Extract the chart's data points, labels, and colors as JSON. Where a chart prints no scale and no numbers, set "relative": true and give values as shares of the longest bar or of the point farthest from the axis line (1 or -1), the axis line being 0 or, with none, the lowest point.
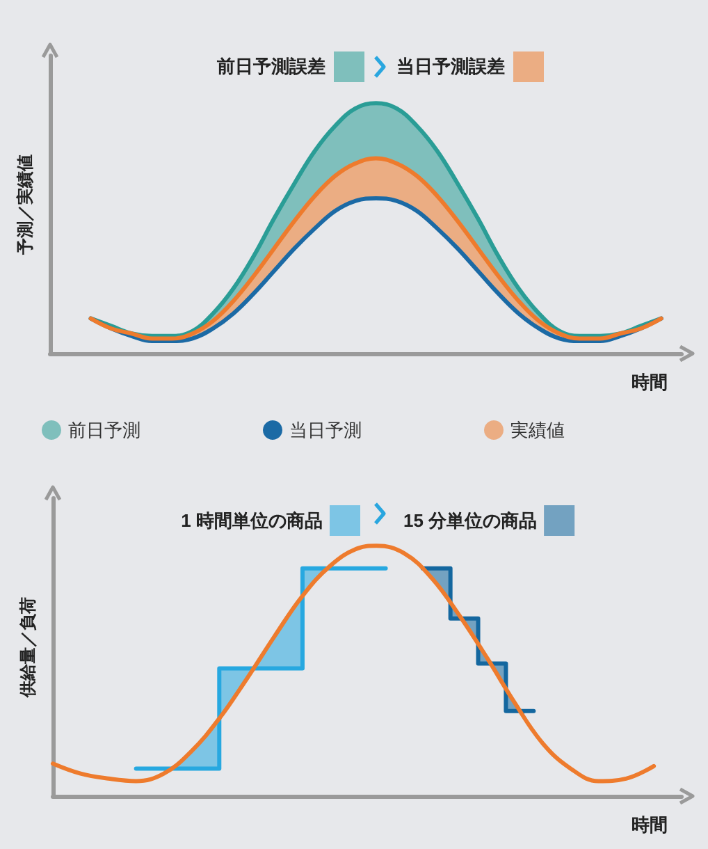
{
  "chart_data": [
    {
      "type": "line",
      "relative": true,
      "ylabel": "予測／実績値",
      "xlabel": "時間",
      "legend": "bottom left",
      "marker": "none",
      "annotations": [
        "前日予測誤差",
        "当日予測誤差"
      ],
      "categories": [
        null,
        null,
        null,
        null,
        null,
        null,
        null,
        null,
        null,
        null,
        null,
        null,
        null,
        null,
        null,
        null,
        null,
        null,
        null,
        null,
        null,
        null,
        null,
        null,
        null,
        null,
        null,
        null,
        null,
        null,
        null,
        null
      ],
      "series": [
        {
          "name": "前日予測",
          "color": "#2a9d96",
          "values": [
            null,
            null,
            0.14,
            0.11,
            0.08,
            0.07,
            0.07,
            0.09,
            0.16,
            0.26,
            0.39,
            0.54,
            0.68,
            0.81,
            0.91,
            0.98,
            1.0,
            0.98,
            0.91,
            0.81,
            0.68,
            0.54,
            0.39,
            0.26,
            0.16,
            0.09,
            0.07,
            0.07,
            0.08,
            0.11,
            0.14,
            null
          ],
          "upper": [
            null,
            null,
            0.14,
            0.11,
            0.08,
            0.07,
            0.07,
            0.09,
            0.16,
            0.26,
            0.39,
            0.54,
            0.68,
            0.81,
            0.91,
            0.98,
            1.0,
            0.98,
            0.91,
            0.81,
            0.68,
            0.54,
            0.39,
            0.26,
            0.16,
            0.09,
            0.07,
            0.07,
            0.08,
            0.11,
            0.14,
            null
          ],
          "lower": [
            null,
            null,
            0.14,
            0.1,
            0.08,
            0.06,
            0.06,
            0.08,
            0.13,
            0.21,
            0.31,
            0.42,
            0.53,
            0.63,
            0.71,
            0.76,
            0.78,
            0.76,
            0.71,
            0.63,
            0.53,
            0.42,
            0.31,
            0.21,
            0.13,
            0.08,
            0.06,
            0.06,
            0.08,
            0.1,
            0.14,
            null
          ]
        },
        {
          "name": "当日予測",
          "color": "#1b6aa5",
          "values": [
            null,
            null,
            0.14,
            0.1,
            0.07,
            0.05,
            0.05,
            0.06,
            0.1,
            0.16,
            0.24,
            0.33,
            0.42,
            0.5,
            0.57,
            0.61,
            0.62,
            0.61,
            0.57,
            0.5,
            0.42,
            0.33,
            0.24,
            0.16,
            0.1,
            0.06,
            0.05,
            0.05,
            0.07,
            0.1,
            0.14,
            null
          ]
        },
        {
          "name": "実績値",
          "color": "#ee7b2d",
          "values": [
            null,
            null,
            0.14,
            0.1,
            0.08,
            0.06,
            0.06,
            0.08,
            0.13,
            0.21,
            0.31,
            0.42,
            0.53,
            0.63,
            0.71,
            0.76,
            0.78,
            0.76,
            0.71,
            0.63,
            0.53,
            0.42,
            0.31,
            0.21,
            0.13,
            0.08,
            0.06,
            0.06,
            0.08,
            0.1,
            0.14,
            null
          ],
          "upper": [
            null,
            null,
            0.14,
            0.1,
            0.08,
            0.06,
            0.06,
            0.08,
            0.13,
            0.21,
            0.31,
            0.42,
            0.53,
            0.63,
            0.71,
            0.76,
            0.78,
            0.76,
            0.71,
            0.63,
            0.53,
            0.42,
            0.31,
            0.21,
            0.13,
            0.08,
            0.06,
            0.06,
            0.08,
            0.1,
            0.14,
            null
          ],
          "lower": [
            null,
            null,
            0.14,
            0.1,
            0.07,
            0.05,
            0.05,
            0.06,
            0.1,
            0.16,
            0.24,
            0.33,
            0.42,
            0.5,
            0.57,
            0.61,
            0.62,
            0.61,
            0.57,
            0.5,
            0.42,
            0.33,
            0.24,
            0.16,
            0.1,
            0.06,
            0.05,
            0.05,
            0.07,
            0.1,
            0.14,
            null
          ]
        }
      ]
    },
    {
      "type": "line",
      "relative": true,
      "ylabel": "供給量／負荷",
      "xlabel": "時間",
      "legend": "top",
      "marker": "none",
      "categories": [
        null,
        null,
        null,
        null,
        null,
        null,
        null,
        null,
        null,
        null,
        null,
        null,
        null,
        null,
        null,
        null,
        null,
        null,
        null,
        null,
        null,
        null,
        null,
        null,
        null,
        null,
        null,
        null,
        null,
        null,
        null,
        null,
        null,
        null,
        null,
        null,
        null,
        null,
        null,
        null,
        null,
        null,
        null,
        null,
        null,
        null,
        null,
        null,
        null,
        null,
        null,
        null,
        null,
        null,
        null,
        null,
        null,
        null,
        null,
        null,
        null,
        null,
        null,
        null,
        null,
        null,
        null,
        null,
        null
      ],
      "series": [
        {
          "name": "1 時間単位の商品",
          "type": "step",
          "color": "#27a8e0",
          "values": [
            null,
            null,
            null,
            null,
            null,
            null,
            null,
            null,
            null,
            0.11,
            0.11,
            0.11,
            0.11,
            0.11,
            0.11,
            0.11,
            0.11,
            0.11,
            0.51,
            0.51,
            0.51,
            0.51,
            0.51,
            0.51,
            0.51,
            0.51,
            0.51,
            0.91,
            0.91,
            0.91,
            0.91,
            0.91,
            0.91,
            0.91,
            0.91,
            0.91,
            0.91,
            null,
            null,
            null,
            null,
            null,
            null,
            null,
            null,
            null,
            null,
            null,
            null,
            null,
            null,
            null,
            null,
            null,
            null,
            null,
            null,
            null,
            null,
            null,
            null,
            null,
            null,
            null,
            null,
            null,
            null,
            null,
            null
          ],
          "upper": [
            null,
            null,
            null,
            null,
            null,
            null,
            null,
            null,
            null,
            null,
            null,
            null,
            0.11,
            0.11,
            0.11,
            0.11,
            0.11,
            0.11,
            0.51,
            0.51,
            0.51,
            0.51,
            0.51,
            0.51,
            0.51,
            0.51,
            0.51,
            0.91,
            0.91,
            0.91,
            0.91,
            null,
            null,
            null,
            null,
            null,
            null,
            null,
            null,
            null,
            null,
            null,
            null,
            null,
            null,
            null,
            null,
            null,
            null,
            null,
            null,
            null,
            null,
            null,
            null,
            null,
            null,
            null,
            null,
            null,
            null,
            null,
            null,
            null,
            null,
            null,
            null,
            null,
            null
          ],
          "lower": [
            null,
            null,
            null,
            null,
            null,
            null,
            null,
            null,
            null,
            null,
            null,
            null,
            0.09,
            0.11,
            0.14,
            0.18,
            0.22,
            0.26,
            0.31,
            0.36,
            0.41,
            0.47,
            0.53,
            0.58,
            0.64,
            0.69,
            0.75,
            0.8,
            0.84,
            0.88,
            0.92,
            null,
            null,
            null,
            null,
            null,
            null,
            null,
            null,
            null,
            null,
            null,
            null,
            null,
            null,
            null,
            null,
            null,
            null,
            null,
            null,
            null,
            null,
            null,
            null,
            null,
            null,
            null,
            null,
            null,
            null,
            null,
            null,
            null,
            null,
            null,
            null,
            null,
            null
          ]
        },
        {
          "name": "15 分単位の商品",
          "type": "step",
          "color": "#14679f",
          "values": [
            null,
            null,
            null,
            null,
            null,
            null,
            null,
            null,
            null,
            null,
            null,
            null,
            null,
            null,
            null,
            null,
            null,
            null,
            null,
            null,
            null,
            null,
            null,
            null,
            null,
            null,
            null,
            null,
            null,
            null,
            null,
            null,
            null,
            null,
            null,
            null,
            null,
            null,
            null,
            null,
            0.91,
            0.91,
            0.91,
            0.71,
            0.71,
            0.71,
            0.53,
            0.53,
            0.53,
            0.34,
            0.34,
            0.34,
            0.34,
            null,
            null,
            null,
            null,
            null,
            null,
            null,
            null,
            null,
            null,
            null,
            null,
            null,
            null,
            null,
            null
          ],
          "upper": [
            null,
            null,
            null,
            null,
            null,
            null,
            null,
            null,
            null,
            null,
            null,
            null,
            null,
            null,
            null,
            null,
            null,
            null,
            null,
            null,
            null,
            null,
            null,
            null,
            null,
            null,
            null,
            null,
            null,
            null,
            null,
            null,
            null,
            null,
            null,
            null,
            null,
            null,
            null,
            null,
            0.91,
            0.91,
            0.91,
            0.71,
            0.71,
            0.71,
            0.53,
            0.53,
            0.53,
            0.34,
            0.34,
            0.34,
            null,
            null,
            null,
            null,
            null,
            null,
            null,
            null,
            null,
            null,
            null,
            null,
            null,
            null,
            null,
            null,
            null
          ],
          "lower": [
            null,
            null,
            null,
            null,
            null,
            null,
            null,
            null,
            null,
            null,
            null,
            null,
            null,
            null,
            null,
            null,
            null,
            null,
            null,
            null,
            null,
            null,
            null,
            null,
            null,
            null,
            null,
            null,
            null,
            null,
            null,
            null,
            null,
            null,
            null,
            null,
            null,
            null,
            null,
            null,
            0.91,
            0.87,
            0.82,
            0.77,
            0.72,
            0.66,
            0.61,
            0.55,
            0.48,
            0.43,
            0.37,
            0.31,
            null,
            null,
            null,
            null,
            null,
            null,
            null,
            null,
            null,
            null,
            null,
            null,
            null,
            null,
            null,
            null,
            null
          ]
        },
        {
          "color": "#ee7b2d",
          "values": [
            0.13,
            null,
            null,
            0.09,
            null,
            null,
            0.07,
            null,
            null,
            0.06,
            null,
            null,
            0.09,
            null,
            null,
            0.18,
            null,
            null,
            0.31,
            null,
            null,
            0.47,
            null,
            null,
            0.64,
            null,
            null,
            0.8,
            null,
            null,
            0.92,
            null,
            null,
            0.99,
            null,
            1.0,
            null,
            null,
            0.97,
            null,
            null,
            0.87,
            null,
            null,
            0.72,
            null,
            null,
            0.55,
            null,
            null,
            0.37,
            null,
            null,
            0.21,
            null,
            null,
            0.11,
            null,
            null,
            0.06,
            null,
            null,
            0.07,
            null,
            null,
            0.12,
            null,
            null,
            null
          ]
        }
      ]
    }
  ]
}
